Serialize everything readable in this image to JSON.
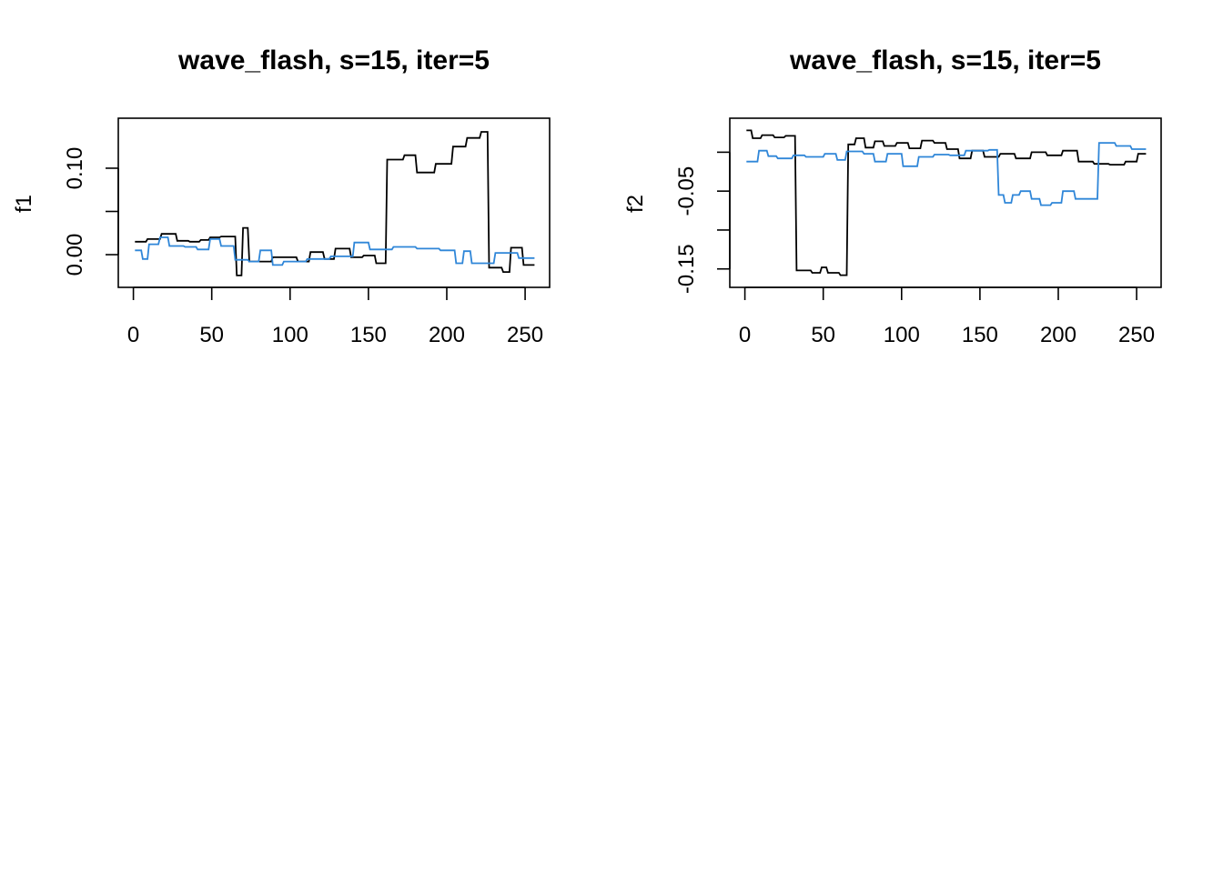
{
  "chart_data": [
    {
      "type": "line",
      "title": "wave_flash, s=15, iter=5",
      "xlabel": "",
      "ylabel": "f1",
      "xlim": [
        0,
        256
      ],
      "ylim": [
        -0.03,
        0.15
      ],
      "xticks": [
        0,
        50,
        100,
        150,
        200,
        250
      ],
      "xtick_labels": [
        "0",
        "50",
        "100",
        "150",
        "200",
        "250"
      ],
      "yticks": [
        0.0,
        0.05,
        0.1
      ],
      "ytick_labels": [
        "0.00",
        "",
        "0.10"
      ],
      "grid": false,
      "series": [
        {
          "color": "#000000",
          "x": [
            1,
            8,
            9,
            17,
            18,
            27,
            28,
            35,
            36,
            42,
            43,
            48,
            49,
            55,
            56,
            65,
            66,
            69,
            70,
            73,
            74,
            88,
            89,
            104,
            105,
            112,
            113,
            121,
            122,
            128,
            129,
            138,
            139,
            146,
            147,
            154,
            155,
            161,
            162,
            172,
            173,
            180,
            181,
            192,
            193,
            203,
            204,
            212,
            213,
            221,
            222,
            226,
            227,
            235,
            236,
            240,
            241,
            248,
            249,
            256
          ],
          "y": [
            0.015,
            0.015,
            0.018,
            0.018,
            0.024,
            0.024,
            0.016,
            0.016,
            0.015,
            0.015,
            0.017,
            0.017,
            0.02,
            0.02,
            0.021,
            0.021,
            -0.024,
            -0.024,
            0.031,
            0.031,
            -0.008,
            -0.008,
            -0.003,
            -0.003,
            -0.008,
            -0.008,
            0.003,
            0.003,
            -0.005,
            -0.005,
            0.007,
            0.007,
            -0.003,
            -0.003,
            -0.001,
            -0.001,
            -0.01,
            -0.01,
            0.11,
            0.11,
            0.115,
            0.115,
            0.095,
            0.095,
            0.105,
            0.105,
            0.125,
            0.125,
            0.135,
            0.135,
            0.142,
            0.142,
            -0.015,
            -0.015,
            -0.02,
            -0.02,
            0.008,
            0.008,
            -0.012,
            -0.012
          ]
        },
        {
          "color": "#2f86d8",
          "x": [
            1,
            5,
            6,
            9,
            10,
            16,
            17,
            22,
            23,
            32,
            33,
            40,
            41,
            48,
            49,
            55,
            56,
            64,
            65,
            73,
            74,
            80,
            81,
            88,
            89,
            95,
            96,
            110,
            111,
            125,
            126,
            140,
            141,
            150,
            151,
            165,
            166,
            180,
            181,
            195,
            196,
            205,
            206,
            210,
            211,
            215,
            216,
            230,
            231,
            245,
            246,
            256
          ],
          "y": [
            0.005,
            0.005,
            -0.005,
            -0.005,
            0.012,
            0.012,
            0.02,
            0.02,
            0.01,
            0.01,
            0.009,
            0.009,
            0.006,
            0.006,
            0.018,
            0.018,
            0.01,
            0.01,
            -0.006,
            -0.006,
            -0.008,
            -0.008,
            0.005,
            0.005,
            -0.012,
            -0.012,
            -0.008,
            -0.008,
            -0.005,
            -0.005,
            -0.002,
            -0.002,
            0.014,
            0.014,
            0.006,
            0.006,
            0.009,
            0.009,
            0.007,
            0.007,
            0.005,
            0.005,
            -0.01,
            -0.01,
            0.004,
            0.004,
            -0.01,
            -0.01,
            0.002,
            0.002,
            -0.004,
            -0.004
          ]
        }
      ]
    },
    {
      "type": "line",
      "title": "wave_flash, s=15, iter=5",
      "xlabel": "",
      "ylabel": "f2",
      "xlim": [
        0,
        256
      ],
      "ylim": [
        -0.165,
        0.035
      ],
      "xticks": [
        0,
        50,
        100,
        150,
        200,
        250
      ],
      "xtick_labels": [
        "0",
        "50",
        "100",
        "150",
        "200",
        "250"
      ],
      "yticks": [
        -0.15,
        -0.1,
        -0.05,
        0.0
      ],
      "ytick_labels": [
        "-0.15",
        "",
        "-0.05",
        ""
      ],
      "grid": false,
      "series": [
        {
          "color": "#000000",
          "x": [
            1,
            4,
            5,
            10,
            11,
            18,
            19,
            25,
            26,
            32,
            33,
            42,
            43,
            48,
            49,
            52,
            53,
            60,
            61,
            65,
            66,
            70,
            71,
            76,
            77,
            82,
            83,
            88,
            89,
            96,
            97,
            104,
            105,
            112,
            113,
            120,
            121,
            128,
            129,
            136,
            137,
            144,
            145,
            152,
            153,
            162,
            163,
            172,
            173,
            182,
            183,
            192,
            193,
            202,
            203,
            212,
            213,
            222,
            223,
            232,
            233,
            242,
            243,
            250,
            251,
            256
          ],
          "y": [
            0.028,
            0.028,
            0.018,
            0.018,
            0.022,
            0.022,
            0.019,
            0.019,
            0.021,
            0.021,
            -0.152,
            -0.152,
            -0.155,
            -0.155,
            -0.148,
            -0.148,
            -0.155,
            -0.155,
            -0.158,
            -0.158,
            0.01,
            0.01,
            0.018,
            0.018,
            0.006,
            0.006,
            0.014,
            0.014,
            0.008,
            0.008,
            0.012,
            0.012,
            0.005,
            0.005,
            0.015,
            0.015,
            0.012,
            0.012,
            0.004,
            0.004,
            -0.008,
            -0.008,
            0.002,
            0.002,
            -0.006,
            -0.006,
            -0.002,
            -0.002,
            -0.008,
            -0.008,
            0.0,
            0.0,
            -0.004,
            -0.004,
            0.002,
            0.002,
            -0.012,
            -0.012,
            -0.015,
            -0.015,
            -0.016,
            -0.016,
            -0.012,
            -0.012,
            -0.002,
            -0.002
          ]
        },
        {
          "color": "#2f86d8",
          "x": [
            1,
            8,
            9,
            14,
            15,
            20,
            21,
            30,
            31,
            38,
            39,
            50,
            51,
            58,
            59,
            64,
            65,
            75,
            76,
            82,
            83,
            90,
            91,
            100,
            101,
            110,
            111,
            120,
            121,
            130,
            131,
            140,
            141,
            155,
            156,
            161,
            162,
            165,
            166,
            170,
            171,
            175,
            176,
            182,
            183,
            188,
            189,
            195,
            196,
            202,
            203,
            210,
            211,
            216,
            217,
            225,
            226,
            236,
            237,
            246,
            247,
            256
          ],
          "y": [
            -0.012,
            -0.012,
            0.002,
            0.002,
            -0.005,
            -0.005,
            -0.008,
            -0.008,
            -0.004,
            -0.004,
            -0.006,
            -0.006,
            -0.002,
            -0.002,
            -0.01,
            -0.01,
            0.001,
            0.001,
            -0.002,
            -0.002,
            -0.012,
            -0.012,
            -0.002,
            -0.002,
            -0.018,
            -0.018,
            -0.006,
            -0.006,
            -0.003,
            -0.003,
            -0.004,
            -0.004,
            0.002,
            0.002,
            0.003,
            0.003,
            -0.055,
            -0.055,
            -0.065,
            -0.065,
            -0.055,
            -0.055,
            -0.05,
            -0.05,
            -0.06,
            -0.06,
            -0.068,
            -0.068,
            -0.065,
            -0.065,
            -0.05,
            -0.05,
            -0.06,
            -0.06,
            -0.06,
            -0.06,
            0.012,
            0.012,
            0.008,
            0.008,
            0.004,
            0.004
          ]
        }
      ]
    }
  ]
}
